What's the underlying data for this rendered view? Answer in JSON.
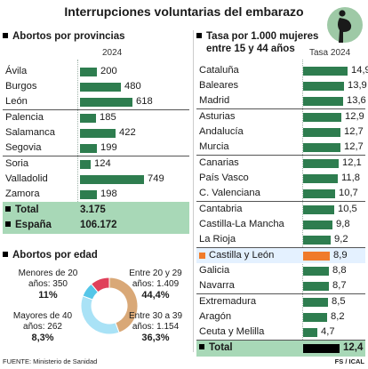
{
  "title": "Interrupciones voluntarias del embarazo",
  "icons": {
    "header": "pregnant-woman-icon"
  },
  "colors": {
    "bar": "#2e7d4f",
    "highlight": "#f07b2a",
    "total_bg": "#a8d8b7",
    "total_bar": "#000000"
  },
  "left": {
    "heading": "Abortos por provincias",
    "year": "2024",
    "groups": [
      [
        {
          "name": "Ávila",
          "value": 200,
          "label": "200"
        },
        {
          "name": "Burgos",
          "value": 480,
          "label": "480"
        },
        {
          "name": "León",
          "value": 618,
          "label": "618"
        }
      ],
      [
        {
          "name": "Palencia",
          "value": 185,
          "label": "185"
        },
        {
          "name": "Salamanca",
          "value": 422,
          "label": "422"
        },
        {
          "name": "Segovia",
          "value": 199,
          "label": "199"
        }
      ],
      [
        {
          "name": "Soria",
          "value": 124,
          "label": "124"
        },
        {
          "name": "Valladolid",
          "value": 749,
          "label": "749"
        },
        {
          "name": "Zamora",
          "value": 198,
          "label": "198"
        }
      ]
    ],
    "totals": [
      {
        "name": "Total",
        "value": "3.175"
      },
      {
        "name": "España",
        "value": "106.172"
      }
    ]
  },
  "right": {
    "heading_line1": "Tasa por 1.000 mujeres",
    "heading_line2": "entre 15 y 44 años",
    "col": "Tasa 2024",
    "groups": [
      [
        {
          "name": "Cataluña",
          "value": 14.9,
          "label": "14,9"
        },
        {
          "name": "Baleares",
          "value": 13.9,
          "label": "13,9"
        },
        {
          "name": "Madrid",
          "value": 13.6,
          "label": "13,6"
        }
      ],
      [
        {
          "name": "Asturias",
          "value": 12.9,
          "label": "12,9"
        },
        {
          "name": "Andalucía",
          "value": 12.7,
          "label": "12,7"
        },
        {
          "name": "Murcia",
          "value": 12.7,
          "label": "12,7"
        }
      ],
      [
        {
          "name": "Canarias",
          "value": 12.1,
          "label": "12,1"
        },
        {
          "name": "País Vasco",
          "value": 11.8,
          "label": "11,8"
        },
        {
          "name": "C. Valenciana",
          "value": 10.7,
          "label": "10,7"
        }
      ],
      [
        {
          "name": "Cantabria",
          "value": 10.5,
          "label": "10,5"
        },
        {
          "name": "Castilla-La Mancha",
          "value": 9.8,
          "label": "9,8"
        },
        {
          "name": "La Rioja",
          "value": 9.2,
          "label": "9,2"
        }
      ],
      [
        {
          "name": "Castilla y León",
          "value": 8.9,
          "label": "8,9",
          "highlight": true
        },
        {
          "name": "Galicia",
          "value": 8.8,
          "label": "8,8"
        },
        {
          "name": "Navarra",
          "value": 8.7,
          "label": "8,7"
        }
      ],
      [
        {
          "name": "Extremadura",
          "value": 8.5,
          "label": "8,5"
        },
        {
          "name": "Aragón",
          "value": 8.2,
          "label": "8,2"
        },
        {
          "name": "Ceuta y Melilla",
          "value": 4.7,
          "label": "4,7"
        }
      ]
    ],
    "total": {
      "name": "Total",
      "value": 12.4,
      "label": "12,4"
    }
  },
  "age": {
    "heading": "Abortos por edad",
    "segments": [
      {
        "name": "Menores de 20",
        "line1": "Menores de 20",
        "line2": "años: 350",
        "pct": "11%",
        "value": 11,
        "color": "#e0405a"
      },
      {
        "name": "Entre 20 y 29",
        "line1": "Entre 20 y 29",
        "line2": "años: 1.409",
        "pct": "44,4%",
        "value": 44.4,
        "color": "#d9a877"
      },
      {
        "name": "Entre 30 a 39",
        "line1": "Entre 30 a 39",
        "line2": "años: 1.154",
        "pct": "36,3%",
        "value": 36.3,
        "color": "#a9e2f6"
      },
      {
        "name": "Mayores de 40",
        "line1": "Mayores de 40",
        "line2": "años: 262",
        "pct": "8,3%",
        "value": 8.3,
        "color": "#55c6e8"
      }
    ]
  },
  "chart_data": [
    {
      "type": "bar",
      "title": "Abortos por provincias",
      "categories": [
        "Ávila",
        "Burgos",
        "León",
        "Palencia",
        "Salamanca",
        "Segovia",
        "Soria",
        "Valladolid",
        "Zamora"
      ],
      "values": [
        200,
        480,
        618,
        185,
        422,
        199,
        124,
        749,
        198
      ]
    },
    {
      "type": "bar",
      "title": "Tasa por 1.000 mujeres entre 15 y 44 años",
      "categories": [
        "Cataluña",
        "Baleares",
        "Madrid",
        "Asturias",
        "Andalucía",
        "Murcia",
        "Canarias",
        "País Vasco",
        "C. Valenciana",
        "Cantabria",
        "Castilla-La Mancha",
        "La Rioja",
        "Castilla y León",
        "Galicia",
        "Navarra",
        "Extremadura",
        "Aragón",
        "Ceuta y Melilla",
        "Total"
      ],
      "values": [
        14.9,
        13.9,
        13.6,
        12.9,
        12.7,
        12.7,
        12.1,
        11.8,
        10.7,
        10.5,
        9.8,
        9.2,
        8.9,
        8.8,
        8.7,
        8.5,
        8.2,
        4.7,
        12.4
      ]
    },
    {
      "type": "pie",
      "title": "Abortos por edad",
      "categories": [
        "Menores de 20",
        "Entre 20 y 29",
        "Entre 30 a 39",
        "Mayores de 40"
      ],
      "values": [
        350,
        1409,
        1154,
        262
      ]
    }
  ],
  "footer": {
    "source": "FUENTE: Ministerio de Sanidad",
    "credit": "FS / ICAL"
  }
}
